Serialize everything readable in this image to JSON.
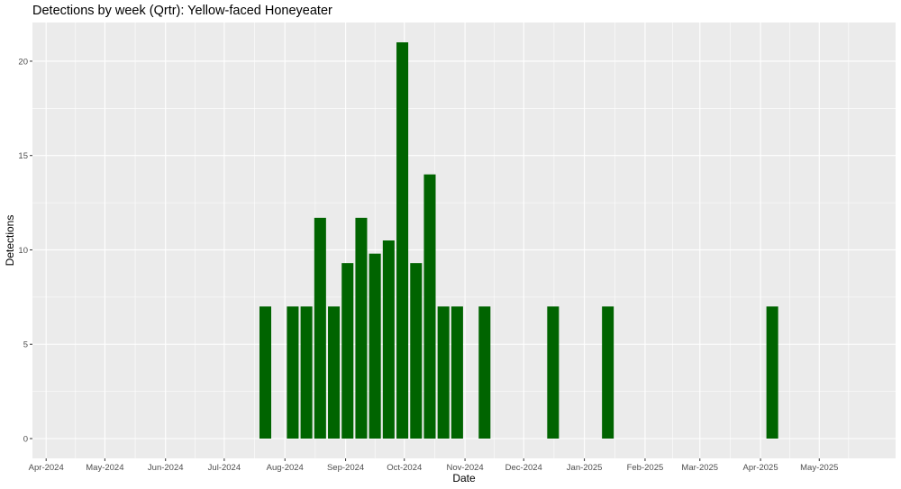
{
  "chart_data": {
    "type": "bar",
    "title": "Detections by week (Qrtr): Yellow-faced Honeyeater",
    "xlabel": "Date",
    "ylabel": "Detections",
    "xlim": [
      "2024-03-25",
      "2025-06-09"
    ],
    "ylim": [
      -1.05,
      22.05
    ],
    "y_ticks": [
      0,
      5,
      10,
      15,
      20
    ],
    "x_ticks": [
      {
        "date": "2024-04-01",
        "label": "Apr-2024"
      },
      {
        "date": "2024-05-01",
        "label": "May-2024"
      },
      {
        "date": "2024-06-01",
        "label": "Jun-2024"
      },
      {
        "date": "2024-07-01",
        "label": "Jul-2024"
      },
      {
        "date": "2024-08-01",
        "label": "Aug-2024"
      },
      {
        "date": "2024-09-01",
        "label": "Sep-2024"
      },
      {
        "date": "2024-10-01",
        "label": "Oct-2024"
      },
      {
        "date": "2024-11-01",
        "label": "Nov-2024"
      },
      {
        "date": "2024-12-01",
        "label": "Dec-2024"
      },
      {
        "date": "2025-01-01",
        "label": "Jan-2025"
      },
      {
        "date": "2025-02-01",
        "label": "Feb-2025"
      },
      {
        "date": "2025-03-01",
        "label": "Mar-2025"
      },
      {
        "date": "2025-04-01",
        "label": "Apr-2025"
      },
      {
        "date": "2025-05-01",
        "label": "May-2025"
      }
    ],
    "series": [
      {
        "color": "#006400",
        "points": [
          {
            "x": "2024-07-22",
            "y": 7
          },
          {
            "x": "2024-08-05",
            "y": 7
          },
          {
            "x": "2024-08-12",
            "y": 7
          },
          {
            "x": "2024-08-19",
            "y": 11.7
          },
          {
            "x": "2024-08-26",
            "y": 7
          },
          {
            "x": "2024-09-02",
            "y": 9.3
          },
          {
            "x": "2024-09-09",
            "y": 11.7
          },
          {
            "x": "2024-09-16",
            "y": 9.8
          },
          {
            "x": "2024-09-23",
            "y": 10.5
          },
          {
            "x": "2024-09-30",
            "y": 21
          },
          {
            "x": "2024-10-07",
            "y": 9.3
          },
          {
            "x": "2024-10-14",
            "y": 14
          },
          {
            "x": "2024-10-21",
            "y": 7
          },
          {
            "x": "2024-10-28",
            "y": 7
          },
          {
            "x": "2024-11-11",
            "y": 7
          },
          {
            "x": "2024-12-16",
            "y": 7
          },
          {
            "x": "2025-01-13",
            "y": 7
          },
          {
            "x": "2025-04-07",
            "y": 7
          }
        ]
      }
    ],
    "bar_width_days": 6,
    "grid": true,
    "legend": "none",
    "panel_background": "#EBEBEB",
    "grid_color": "#FFFFFF"
  }
}
